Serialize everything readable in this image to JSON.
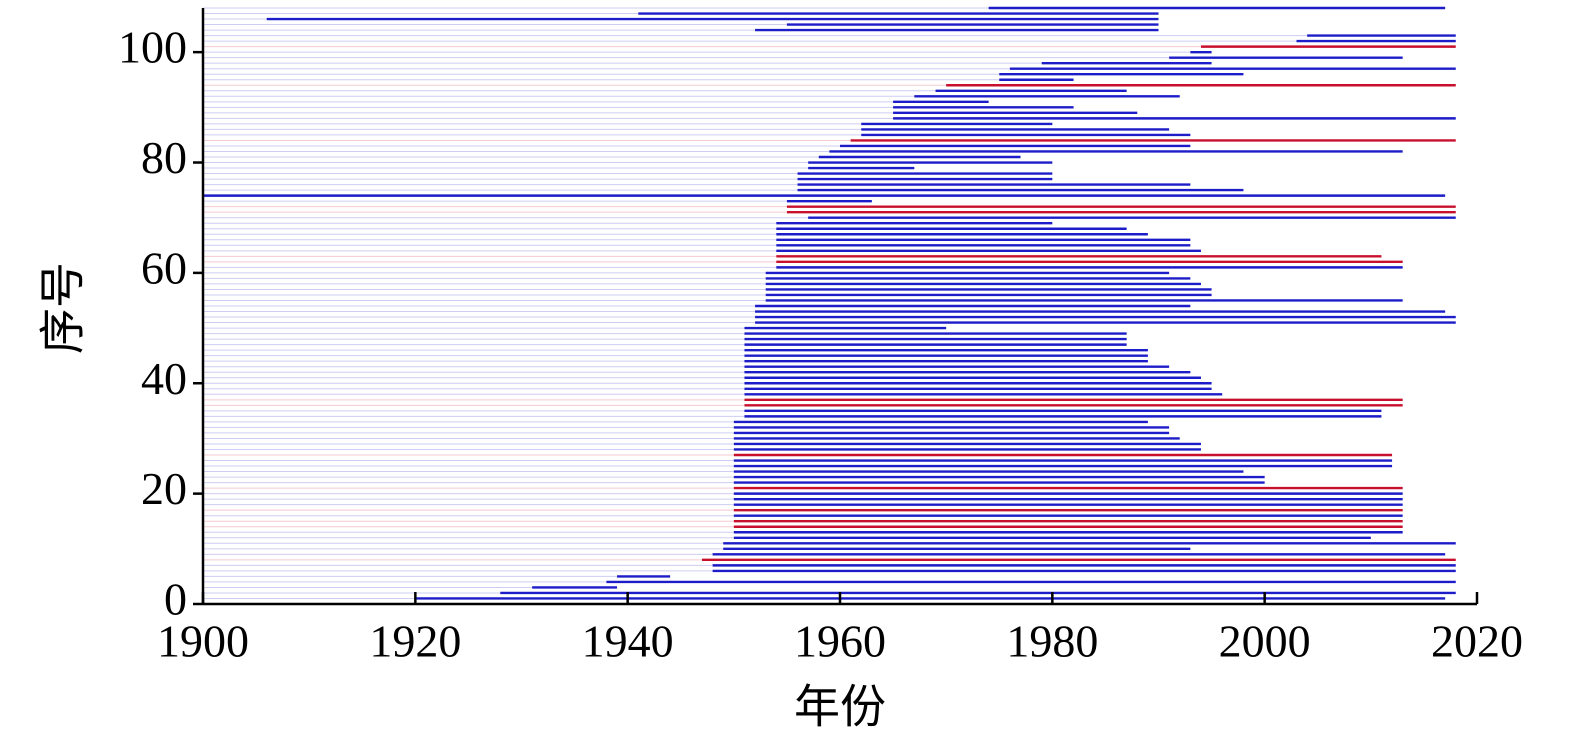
{
  "chart_data": {
    "type": "range",
    "x_label": "年份",
    "y_label": "序号",
    "xlim": [
      1900,
      2020
    ],
    "xticks": [
      1900,
      1920,
      1940,
      1960,
      1980,
      2000,
      2020
    ],
    "ylim": [
      0,
      108
    ],
    "yticks": [
      0,
      20,
      40,
      60,
      80,
      100
    ],
    "bars": [
      {
        "y": 1,
        "start": 1920,
        "end": 2017,
        "color": "#1c1cc8"
      },
      {
        "y": 2,
        "start": 1928,
        "end": 2018,
        "color": "#1c1cc8"
      },
      {
        "y": 3,
        "start": 1931,
        "end": 1939,
        "color": "#1c1cc8"
      },
      {
        "y": 4,
        "start": 1938,
        "end": 2018,
        "color": "#1c1cc8"
      },
      {
        "y": 5,
        "start": 1939,
        "end": 1944,
        "color": "#1c1cc8"
      },
      {
        "y": 6,
        "start": 1948,
        "end": 2018,
        "color": "#1c1cc8"
      },
      {
        "y": 7,
        "start": 1948,
        "end": 2018,
        "color": "#1c1cc8"
      },
      {
        "y": 8,
        "start": 1947,
        "end": 2018,
        "color": "#c8102e"
      },
      {
        "y": 9,
        "start": 1948,
        "end": 2017,
        "color": "#1c1cc8"
      },
      {
        "y": 10,
        "start": 1949,
        "end": 1993,
        "color": "#1c1cc8"
      },
      {
        "y": 11,
        "start": 1949,
        "end": 2018,
        "color": "#1c1cc8"
      },
      {
        "y": 12,
        "start": 1950,
        "end": 2010,
        "color": "#1c1cc8"
      },
      {
        "y": 13,
        "start": 1950,
        "end": 2013,
        "color": "#1c1cc8"
      },
      {
        "y": 14,
        "start": 1950,
        "end": 2013,
        "color": "#c8102e"
      },
      {
        "y": 15,
        "start": 1950,
        "end": 2013,
        "color": "#c8102e"
      },
      {
        "y": 16,
        "start": 1950,
        "end": 2013,
        "color": "#1c1cc8"
      },
      {
        "y": 17,
        "start": 1950,
        "end": 2013,
        "color": "#c8102e"
      },
      {
        "y": 18,
        "start": 1950,
        "end": 2013,
        "color": "#1c1cc8"
      },
      {
        "y": 19,
        "start": 1950,
        "end": 2013,
        "color": "#1c1cc8"
      },
      {
        "y": 20,
        "start": 1950,
        "end": 2013,
        "color": "#1c1cc8"
      },
      {
        "y": 21,
        "start": 1950,
        "end": 2013,
        "color": "#c8102e"
      },
      {
        "y": 22,
        "start": 1950,
        "end": 2000,
        "color": "#1c1cc8"
      },
      {
        "y": 23,
        "start": 1950,
        "end": 2000,
        "color": "#1c1cc8"
      },
      {
        "y": 24,
        "start": 1950,
        "end": 1998,
        "color": "#1c1cc8"
      },
      {
        "y": 25,
        "start": 1950,
        "end": 2012,
        "color": "#1c1cc8"
      },
      {
        "y": 26,
        "start": 1950,
        "end": 2012,
        "color": "#1c1cc8"
      },
      {
        "y": 27,
        "start": 1950,
        "end": 2012,
        "color": "#c8102e"
      },
      {
        "y": 28,
        "start": 1950,
        "end": 1994,
        "color": "#1c1cc8"
      },
      {
        "y": 29,
        "start": 1950,
        "end": 1994,
        "color": "#1c1cc8"
      },
      {
        "y": 30,
        "start": 1950,
        "end": 1992,
        "color": "#1c1cc8"
      },
      {
        "y": 31,
        "start": 1950,
        "end": 1991,
        "color": "#1c1cc8"
      },
      {
        "y": 32,
        "start": 1950,
        "end": 1991,
        "color": "#1c1cc8"
      },
      {
        "y": 33,
        "start": 1950,
        "end": 1989,
        "color": "#1c1cc8"
      },
      {
        "y": 34,
        "start": 1951,
        "end": 2011,
        "color": "#1c1cc8"
      },
      {
        "y": 35,
        "start": 1951,
        "end": 2011,
        "color": "#1c1cc8"
      },
      {
        "y": 36,
        "start": 1951,
        "end": 2013,
        "color": "#c8102e"
      },
      {
        "y": 37,
        "start": 1951,
        "end": 2013,
        "color": "#c8102e"
      },
      {
        "y": 38,
        "start": 1951,
        "end": 1996,
        "color": "#1c1cc8"
      },
      {
        "y": 39,
        "start": 1951,
        "end": 1995,
        "color": "#1c1cc8"
      },
      {
        "y": 40,
        "start": 1951,
        "end": 1995,
        "color": "#1c1cc8"
      },
      {
        "y": 41,
        "start": 1951,
        "end": 1994,
        "color": "#1c1cc8"
      },
      {
        "y": 42,
        "start": 1951,
        "end": 1993,
        "color": "#1c1cc8"
      },
      {
        "y": 43,
        "start": 1951,
        "end": 1991,
        "color": "#1c1cc8"
      },
      {
        "y": 44,
        "start": 1951,
        "end": 1989,
        "color": "#1c1cc8"
      },
      {
        "y": 45,
        "start": 1951,
        "end": 1989,
        "color": "#1c1cc8"
      },
      {
        "y": 46,
        "start": 1951,
        "end": 1989,
        "color": "#1c1cc8"
      },
      {
        "y": 47,
        "start": 1951,
        "end": 1987,
        "color": "#1c1cc8"
      },
      {
        "y": 48,
        "start": 1951,
        "end": 1987,
        "color": "#1c1cc8"
      },
      {
        "y": 49,
        "start": 1951,
        "end": 1987,
        "color": "#1c1cc8"
      },
      {
        "y": 50,
        "start": 1951,
        "end": 1970,
        "color": "#1c1cc8"
      },
      {
        "y": 51,
        "start": 1952,
        "end": 2018,
        "color": "#1c1cc8"
      },
      {
        "y": 52,
        "start": 1952,
        "end": 2018,
        "color": "#1c1cc8"
      },
      {
        "y": 53,
        "start": 1952,
        "end": 2017,
        "color": "#1c1cc8"
      },
      {
        "y": 54,
        "start": 1952,
        "end": 1993,
        "color": "#1c1cc8"
      },
      {
        "y": 55,
        "start": 1953,
        "end": 2013,
        "color": "#1c1cc8"
      },
      {
        "y": 56,
        "start": 1953,
        "end": 1995,
        "color": "#1c1cc8"
      },
      {
        "y": 57,
        "start": 1953,
        "end": 1995,
        "color": "#1c1cc8"
      },
      {
        "y": 58,
        "start": 1953,
        "end": 1994,
        "color": "#1c1cc8"
      },
      {
        "y": 59,
        "start": 1953,
        "end": 1993,
        "color": "#1c1cc8"
      },
      {
        "y": 60,
        "start": 1953,
        "end": 1991,
        "color": "#1c1cc8"
      },
      {
        "y": 61,
        "start": 1954,
        "end": 2013,
        "color": "#1c1cc8"
      },
      {
        "y": 62,
        "start": 1954,
        "end": 2013,
        "color": "#c8102e"
      },
      {
        "y": 63,
        "start": 1954,
        "end": 2011,
        "color": "#c8102e"
      },
      {
        "y": 64,
        "start": 1954,
        "end": 1994,
        "color": "#1c1cc8"
      },
      {
        "y": 65,
        "start": 1954,
        "end": 1993,
        "color": "#1c1cc8"
      },
      {
        "y": 66,
        "start": 1954,
        "end": 1993,
        "color": "#1c1cc8"
      },
      {
        "y": 67,
        "start": 1954,
        "end": 1989,
        "color": "#1c1cc8"
      },
      {
        "y": 68,
        "start": 1954,
        "end": 1987,
        "color": "#1c1cc8"
      },
      {
        "y": 69,
        "start": 1954,
        "end": 1980,
        "color": "#1c1cc8"
      },
      {
        "y": 70,
        "start": 1957,
        "end": 2018,
        "color": "#1c1cc8"
      },
      {
        "y": 71,
        "start": 1955,
        "end": 2018,
        "color": "#c8102e"
      },
      {
        "y": 72,
        "start": 1955,
        "end": 2018,
        "color": "#c8102e"
      },
      {
        "y": 73,
        "start": 1955,
        "end": 1963,
        "color": "#1c1cc8"
      },
      {
        "y": 74,
        "start": 1900,
        "end": 2017,
        "color": "#1c1cc8"
      },
      {
        "y": 75,
        "start": 1956,
        "end": 1998,
        "color": "#1c1cc8"
      },
      {
        "y": 76,
        "start": 1956,
        "end": 1993,
        "color": "#1c1cc8"
      },
      {
        "y": 77,
        "start": 1956,
        "end": 1980,
        "color": "#1c1cc8"
      },
      {
        "y": 78,
        "start": 1956,
        "end": 1980,
        "color": "#1c1cc8"
      },
      {
        "y": 79,
        "start": 1957,
        "end": 1967,
        "color": "#1c1cc8"
      },
      {
        "y": 80,
        "start": 1957,
        "end": 1980,
        "color": "#1c1cc8"
      },
      {
        "y": 81,
        "start": 1958,
        "end": 1977,
        "color": "#1c1cc8"
      },
      {
        "y": 82,
        "start": 1959,
        "end": 2013,
        "color": "#1c1cc8"
      },
      {
        "y": 83,
        "start": 1960,
        "end": 1993,
        "color": "#1c1cc8"
      },
      {
        "y": 84,
        "start": 1961,
        "end": 2018,
        "color": "#c8102e"
      },
      {
        "y": 85,
        "start": 1962,
        "end": 1993,
        "color": "#1c1cc8"
      },
      {
        "y": 86,
        "start": 1962,
        "end": 1991,
        "color": "#1c1cc8"
      },
      {
        "y": 87,
        "start": 1962,
        "end": 1980,
        "color": "#1c1cc8"
      },
      {
        "y": 88,
        "start": 1965,
        "end": 2018,
        "color": "#1c1cc8"
      },
      {
        "y": 89,
        "start": 1965,
        "end": 1988,
        "color": "#1c1cc8"
      },
      {
        "y": 90,
        "start": 1965,
        "end": 1982,
        "color": "#1c1cc8"
      },
      {
        "y": 91,
        "start": 1965,
        "end": 1974,
        "color": "#1c1cc8"
      },
      {
        "y": 92,
        "start": 1967,
        "end": 1992,
        "color": "#1c1cc8"
      },
      {
        "y": 93,
        "start": 1969,
        "end": 1987,
        "color": "#1c1cc8"
      },
      {
        "y": 94,
        "start": 1970,
        "end": 2018,
        "color": "#c8102e"
      },
      {
        "y": 95,
        "start": 1975,
        "end": 1982,
        "color": "#1c1cc8"
      },
      {
        "y": 96,
        "start": 1975,
        "end": 1998,
        "color": "#1c1cc8"
      },
      {
        "y": 97,
        "start": 1976,
        "end": 2018,
        "color": "#1c1cc8"
      },
      {
        "y": 98,
        "start": 1979,
        "end": 1995,
        "color": "#1c1cc8"
      },
      {
        "y": 99,
        "start": 1991,
        "end": 2013,
        "color": "#1c1cc8"
      },
      {
        "y": 100,
        "start": 1993,
        "end": 1995,
        "color": "#1c1cc8"
      },
      {
        "y": 101,
        "start": 1994,
        "end": 2018,
        "color": "#c8102e"
      },
      {
        "y": 102,
        "start": 2003,
        "end": 2018,
        "color": "#1c1cc8"
      },
      {
        "y": 103,
        "start": 2004,
        "end": 2018,
        "color": "#1c1cc8"
      },
      {
        "y": 104,
        "start": 1952,
        "end": 1990,
        "color": "#1c1cc8"
      },
      {
        "y": 105,
        "start": 1955,
        "end": 1990,
        "color": "#1c1cc8"
      },
      {
        "y": 106,
        "start": 1906,
        "end": 1990,
        "color": "#1c1cc8"
      },
      {
        "y": 107,
        "start": 1941,
        "end": 1990,
        "color": "#1c1cc8"
      },
      {
        "y": 108,
        "start": 1974,
        "end": 2017,
        "color": "#1c1cc8"
      }
    ]
  }
}
